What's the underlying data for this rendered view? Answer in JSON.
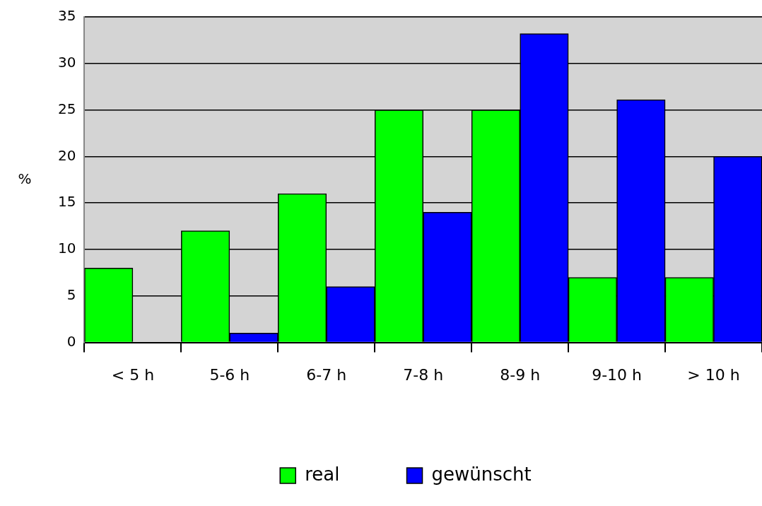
{
  "chart_data": {
    "type": "bar",
    "ylabel": "%",
    "categories": [
      "< 5 h",
      "5-6 h",
      "6-7 h",
      "7-8 h",
      "8-9 h",
      "9-10 h",
      "> 10 h"
    ],
    "series": [
      {
        "name": "real",
        "color": "#00ff00",
        "values": [
          8,
          12,
          16,
          25,
          25,
          7,
          7
        ]
      },
      {
        "name": "gewünscht",
        "color": "#0000ff",
        "values": [
          0,
          1,
          6,
          14,
          33.2,
          26.1,
          20
        ]
      }
    ],
    "ylim": [
      0,
      35
    ],
    "yticks": [
      0,
      5,
      10,
      15,
      20,
      25,
      30,
      35
    ],
    "grid": "y",
    "legend": "bottom"
  }
}
